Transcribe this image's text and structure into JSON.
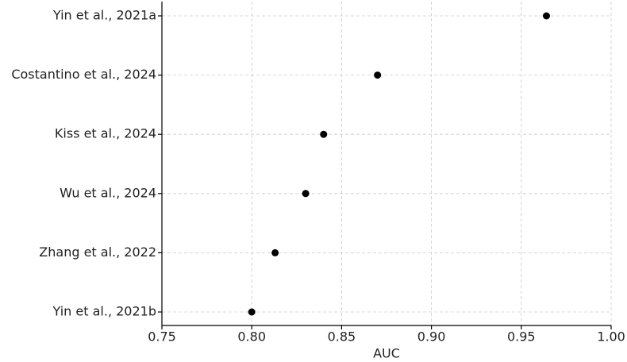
{
  "chart_data": {
    "type": "scatter",
    "categories": [
      "Yin et al., 2021a",
      "Costantino et al., 2024",
      "Kiss et al., 2024",
      "Wu et al., 2024",
      "Zhang et al., 2022",
      "Yin et al., 2021b"
    ],
    "values": [
      0.964,
      0.87,
      0.84,
      0.83,
      0.813,
      0.8
    ],
    "color": "#000000",
    "xlabel": "AUC",
    "xlim": [
      0.75,
      1.0
    ],
    "xticks": [
      {
        "value": 0.75,
        "label": "0.75"
      },
      {
        "value": 0.8,
        "label": "0.80"
      },
      0.85,
      {
        "value": 0.9,
        "label": "0.90"
      },
      0.95,
      {
        "value": 1.0,
        "label": "1.00"
      }
    ],
    "grid": true
  }
}
